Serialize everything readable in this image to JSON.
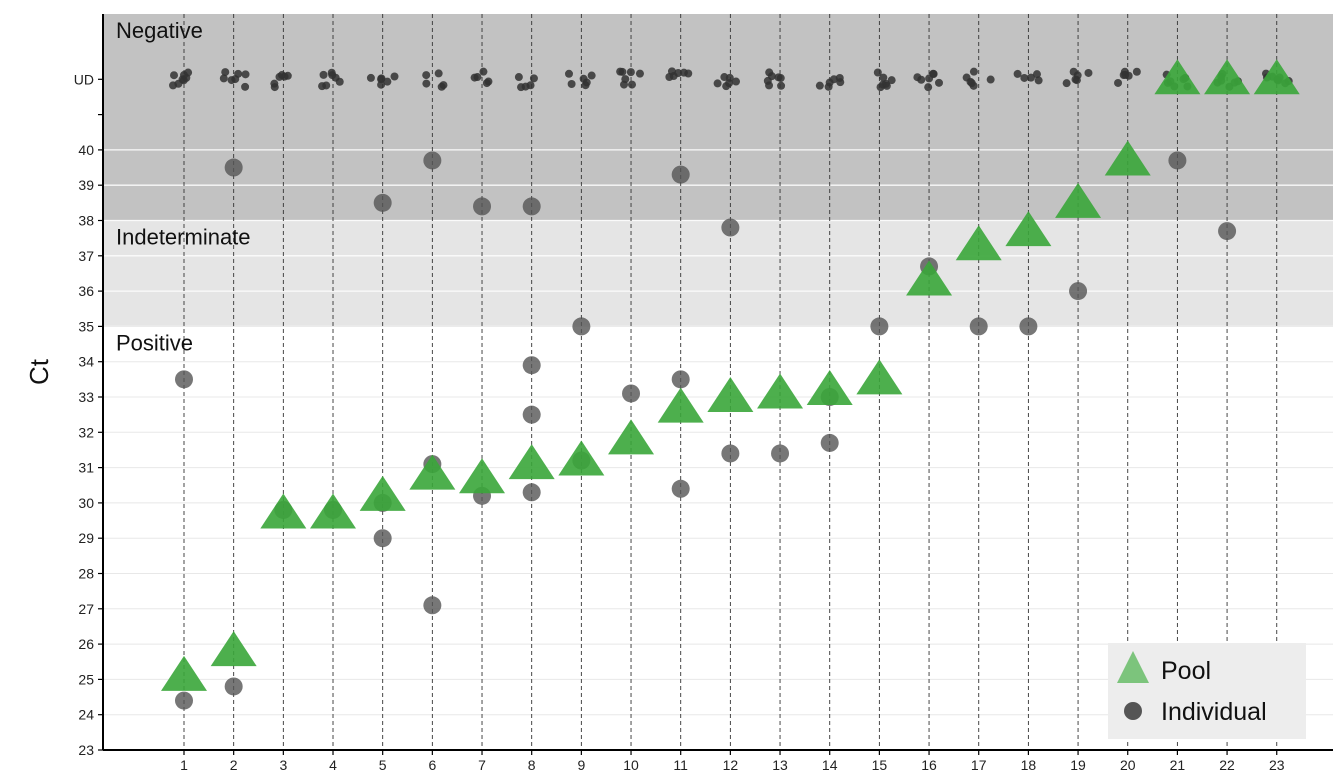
{
  "chart_data": {
    "type": "scatter",
    "ylabel": "Ct",
    "x_ticks": [
      "1",
      "2",
      "3",
      "4",
      "5",
      "6",
      "7",
      "8",
      "9",
      "10",
      "11",
      "12",
      "13",
      "14",
      "15",
      "16",
      "17",
      "18",
      "19",
      "20",
      "21",
      "22",
      "23"
    ],
    "y_ticks": [
      "23",
      "24",
      "25",
      "26",
      "27",
      "28",
      "29",
      "30",
      "31",
      "32",
      "33",
      "34",
      "35",
      "36",
      "37",
      "38",
      "39",
      "40"
    ],
    "y_special_tick": "UD",
    "ylim": [
      23,
      42
    ],
    "ud_position": 42,
    "grid": true,
    "regions": [
      {
        "label": "Negative",
        "from": 38,
        "to": 42,
        "color": "#c2c2c2"
      },
      {
        "label": "Indeterminate",
        "from": 35,
        "to": 38,
        "color": "#e5e5e5"
      },
      {
        "label": "Positive",
        "from": 23,
        "to": 35,
        "color": "#ffffff"
      }
    ],
    "legend": {
      "position": "bottom-right",
      "entries": [
        {
          "name": "Pool",
          "shape": "triangle",
          "color": "#7cc47c"
        },
        {
          "name": "Individual",
          "shape": "circle",
          "color": "#555555"
        }
      ]
    },
    "series": [
      {
        "name": "Pool",
        "color": "#3aa63a",
        "points": [
          {
            "x": 1,
            "y": 25.1
          },
          {
            "x": 2,
            "y": 25.8
          },
          {
            "x": 3,
            "y": 29.7
          },
          {
            "x": 4,
            "y": 29.7
          },
          {
            "x": 5,
            "y": 30.2
          },
          {
            "x": 6,
            "y": 30.8
          },
          {
            "x": 7,
            "y": 30.7
          },
          {
            "x": 8,
            "y": 31.1
          },
          {
            "x": 9,
            "y": 31.2
          },
          {
            "x": 10,
            "y": 31.8
          },
          {
            "x": 11,
            "y": 32.7
          },
          {
            "x": 12,
            "y": 33.0
          },
          {
            "x": 13,
            "y": 33.1
          },
          {
            "x": 14,
            "y": 33.2
          },
          {
            "x": 15,
            "y": 33.5
          },
          {
            "x": 16,
            "y": 36.3
          },
          {
            "x": 17,
            "y": 37.3
          },
          {
            "x": 18,
            "y": 37.7
          },
          {
            "x": 19,
            "y": 38.5
          },
          {
            "x": 20,
            "y": 39.7
          },
          {
            "x": 21,
            "y": "UD"
          },
          {
            "x": 22,
            "y": "UD"
          },
          {
            "x": 23,
            "y": "UD"
          }
        ]
      },
      {
        "name": "Individual",
        "color": "#555555",
        "points": [
          {
            "x": 1,
            "y": 33.5
          },
          {
            "x": 1,
            "y": 24.4
          },
          {
            "x": 2,
            "y": 39.5
          },
          {
            "x": 2,
            "y": 24.8
          },
          {
            "x": 3,
            "y": 29.8
          },
          {
            "x": 4,
            "y": 29.8
          },
          {
            "x": 5,
            "y": 38.5
          },
          {
            "x": 5,
            "y": 30.0
          },
          {
            "x": 5,
            "y": 29.0
          },
          {
            "x": 6,
            "y": 39.7
          },
          {
            "x": 6,
            "y": 31.1
          },
          {
            "x": 6,
            "y": 27.1
          },
          {
            "x": 7,
            "y": 38.4
          },
          {
            "x": 7,
            "y": 30.2
          },
          {
            "x": 8,
            "y": 38.4
          },
          {
            "x": 8,
            "y": 33.9
          },
          {
            "x": 8,
            "y": 32.5
          },
          {
            "x": 8,
            "y": 30.3
          },
          {
            "x": 9,
            "y": 35.0
          },
          {
            "x": 9,
            "y": 31.2
          },
          {
            "x": 10,
            "y": 33.1
          },
          {
            "x": 11,
            "y": 39.3
          },
          {
            "x": 11,
            "y": 33.5
          },
          {
            "x": 11,
            "y": 30.4
          },
          {
            "x": 12,
            "y": 37.8
          },
          {
            "x": 12,
            "y": 31.4
          },
          {
            "x": 13,
            "y": 31.4
          },
          {
            "x": 14,
            "y": 33.0
          },
          {
            "x": 14,
            "y": 31.7
          },
          {
            "x": 15,
            "y": 35.0
          },
          {
            "x": 16,
            "y": 36.7
          },
          {
            "x": 17,
            "y": 35.0
          },
          {
            "x": 18,
            "y": 35.0
          },
          {
            "x": 19,
            "y": 36.0
          },
          {
            "x": 21,
            "y": 39.7
          },
          {
            "x": 22,
            "y": 37.7
          }
        ]
      },
      {
        "name": "Individual (UD)",
        "color": "#333333",
        "points_per_x": [
          8,
          7,
          6,
          7,
          6,
          5,
          5,
          5,
          6,
          7,
          6,
          6,
          7,
          6,
          7,
          7,
          6,
          5,
          6,
          6,
          7,
          7,
          8
        ]
      }
    ]
  }
}
